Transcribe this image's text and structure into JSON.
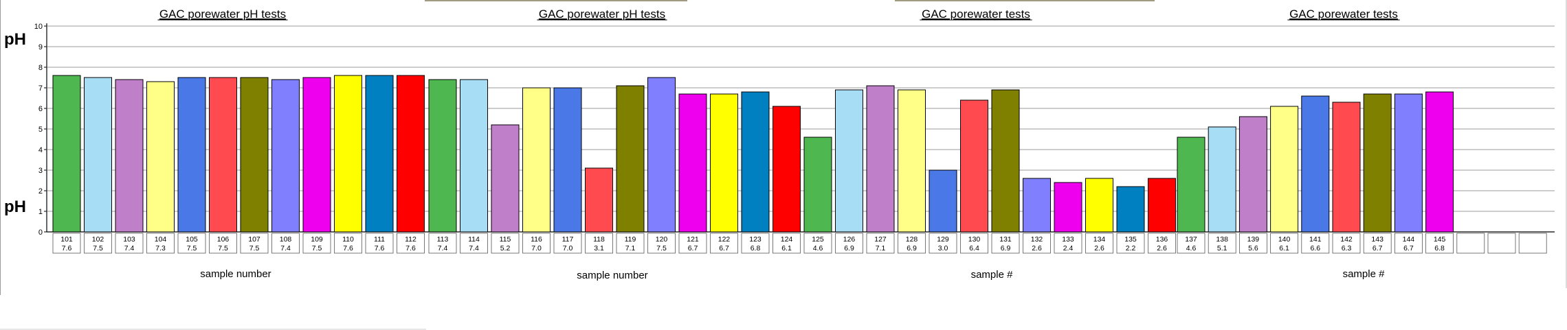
{
  "ylabel": "pH",
  "y_ticks": [
    "0",
    "1",
    "2",
    "3",
    "4",
    "5",
    "6",
    "7",
    "8",
    "9",
    "10"
  ],
  "chart_data": [
    {
      "type": "bar",
      "title": "GAC porewater pH tests",
      "xlabel": "sample number",
      "ylabel": "pH",
      "ylim": [
        0,
        10
      ],
      "grid": true,
      "categories": [
        "101",
        "102",
        "103",
        "104",
        "105",
        "106",
        "107",
        "108",
        "109",
        "110",
        "111",
        "112"
      ],
      "values": [
        7.6,
        7.5,
        7.4,
        7.3,
        7.5,
        7.5,
        7.5,
        7.4,
        7.5,
        7.6,
        7.6,
        7.6
      ],
      "value_labels": [
        "7.6",
        "7.5",
        "7.4",
        "7.3",
        "7.5",
        "7.5",
        "7.5",
        "7.4",
        "7.5",
        "7.6",
        "7.6",
        "7.6"
      ],
      "colors": [
        "#4fb74f",
        "#a8ddf6",
        "#bf7fc9",
        "#ffff88",
        "#4a78e6",
        "#ff4a4f",
        "#808000",
        "#8080ff",
        "#ee00ee",
        "#ffff00",
        "#0080c0",
        "#ff0000"
      ]
    },
    {
      "type": "bar",
      "title": "GAC porewater pH tests",
      "xlabel": "sample number",
      "ylabel": "pH",
      "ylim": [
        0,
        10
      ],
      "grid": true,
      "categories": [
        "113",
        "114",
        "115",
        "116",
        "117",
        "118",
        "119",
        "120",
        "121",
        "122",
        "123",
        "124"
      ],
      "values": [
        7.4,
        7.4,
        5.2,
        7.0,
        7.0,
        3.1,
        7.1,
        7.5,
        6.7,
        6.7,
        6.8,
        6.1
      ],
      "value_labels": [
        "7.4",
        "7.4",
        "5.2",
        "7.0",
        "7.0",
        "3.1",
        "7.1",
        "7.5",
        "6.7",
        "6.7",
        "6.8",
        "6.1"
      ],
      "colors": [
        "#4fb74f",
        "#a8ddf6",
        "#bf7fc9",
        "#ffff88",
        "#4a78e6",
        "#ff4a4f",
        "#808000",
        "#8080ff",
        "#ee00ee",
        "#ffff00",
        "#0080c0",
        "#ff0000"
      ]
    },
    {
      "type": "bar",
      "title": "GAC porewater tests",
      "xlabel": "sample #",
      "ylabel": "pH",
      "ylim": [
        0,
        10
      ],
      "grid": true,
      "categories": [
        "125",
        "126",
        "127",
        "128",
        "129",
        "130",
        "131",
        "132",
        "133",
        "134",
        "135",
        "136"
      ],
      "values": [
        4.6,
        6.9,
        7.1,
        6.9,
        3.0,
        6.4,
        6.9,
        2.6,
        2.4,
        2.6,
        2.2,
        2.6
      ],
      "value_labels": [
        "4.6",
        "6.9",
        "7.1",
        "6.9",
        "3.0",
        "6.4",
        "6.9",
        "2.6",
        "2.4",
        "2.6",
        "2.2",
        "2.6"
      ],
      "colors": [
        "#4fb74f",
        "#a8ddf6",
        "#bf7fc9",
        "#ffff88",
        "#4a78e6",
        "#ff4a4f",
        "#808000",
        "#8080ff",
        "#ee00ee",
        "#ffff00",
        "#0080c0",
        "#ff0000"
      ]
    },
    {
      "type": "bar",
      "title": "GAC porewater tests",
      "xlabel": "sample #",
      "ylabel": "pH",
      "ylim": [
        0,
        10
      ],
      "grid": true,
      "categories": [
        "137",
        "138",
        "139",
        "140",
        "141",
        "142",
        "143",
        "144",
        "145",
        "",
        "",
        ""
      ],
      "values": [
        4.6,
        5.1,
        5.6,
        6.1,
        6.6,
        6.3,
        6.7,
        6.7,
        6.8,
        null,
        null,
        null
      ],
      "value_labels": [
        "4.6",
        "5.1",
        "5.6",
        "6.1",
        "6.6",
        "6.3",
        "6.7",
        "6.7",
        "6.8",
        "",
        "",
        ""
      ],
      "colors": [
        "#4fb74f",
        "#a8ddf6",
        "#bf7fc9",
        "#ffff88",
        "#4a78e6",
        "#ff4a4f",
        "#808000",
        "#8080ff",
        "#ee00ee",
        "#ffff00",
        "#0080c0",
        "#ff0000"
      ]
    }
  ]
}
